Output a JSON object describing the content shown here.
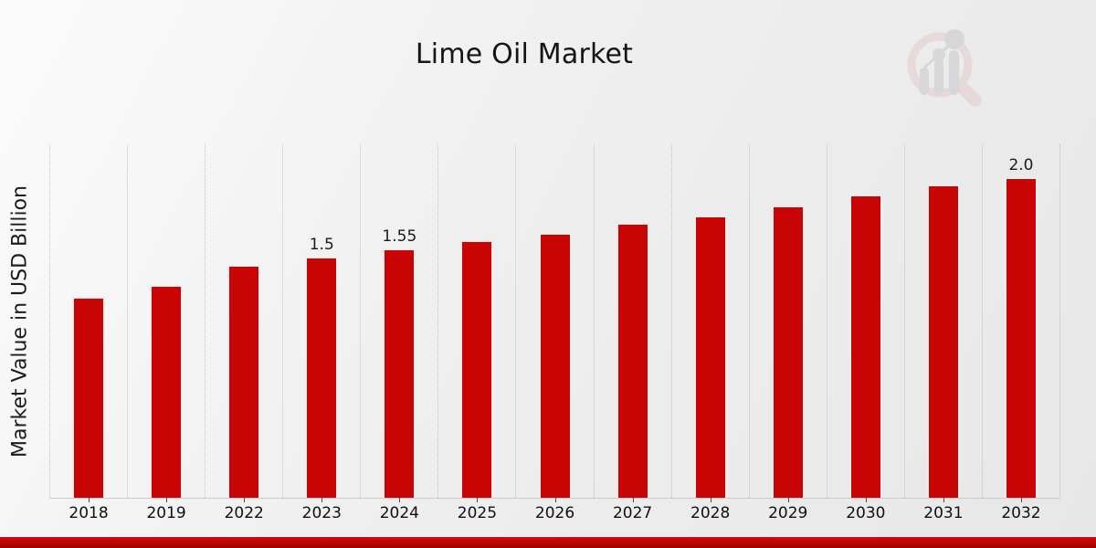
{
  "page": {
    "title": "Lime Oil Market"
  },
  "chart_data": {
    "type": "bar",
    "title": "Lime Oil Market",
    "xlabel": "",
    "ylabel": "Market Value in USD Billion",
    "categories": [
      "2018",
      "2019",
      "2022",
      "2023",
      "2024",
      "2025",
      "2026",
      "2027",
      "2028",
      "2029",
      "2030",
      "2031",
      "2032"
    ],
    "values": [
      1.25,
      1.32,
      1.45,
      1.5,
      1.55,
      1.6,
      1.65,
      1.71,
      1.76,
      1.82,
      1.89,
      1.95,
      2.0
    ],
    "bar_labels": [
      "",
      "",
      "",
      "1.5",
      "1.55",
      "",
      "",
      "",
      "",
      "",
      "",
      "",
      "2.0"
    ],
    "ylim": [
      0,
      2.215
    ],
    "legend": "none",
    "grid": "vertical dotted column separators",
    "y_axis_ticks": "none"
  },
  "colors": {
    "bar_fill": "#c90404",
    "bar_edge": "#eeecec",
    "gridline": "#c2c2c2",
    "axis_line": "#cbcbcb",
    "text": "#151515",
    "footer_band_top": "#d40909",
    "footer_band_bottom": "#9e0404",
    "logo_ring_pink": "#e4cccc",
    "logo_gray": "#c7c7cb"
  },
  "branding": {
    "logo_icon": "magnifier-bar-chart-watermark"
  }
}
